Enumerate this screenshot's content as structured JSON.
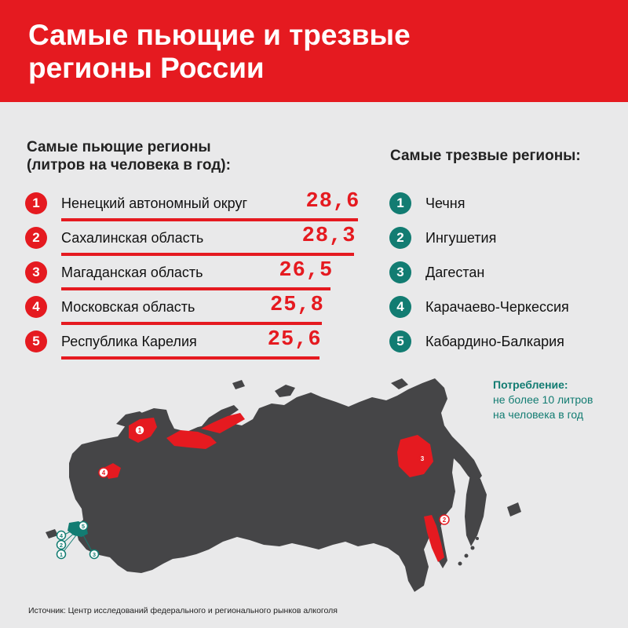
{
  "header": {
    "title_line1": "Самые пьющие и трезвые",
    "title_line2": "регионы России"
  },
  "drinking": {
    "heading_line1": "Самые пьющие регионы",
    "heading_line2": "(литров на человека в год):",
    "color": "#e51a20"
  },
  "sober": {
    "heading": "Самые трезвые регионы:",
    "color": "#127c72"
  },
  "chart_data": {
    "type": "bar",
    "categories": [
      "Ненецкий автономный округ",
      "Сахалинская область",
      "Магаданская область",
      "Московская область",
      "Республика Карелия"
    ],
    "ranks": [
      "1",
      "2",
      "3",
      "4",
      "5"
    ],
    "values": [
      28.6,
      28.3,
      26.5,
      25.8,
      25.6
    ],
    "value_labels": [
      "28,6",
      "28,3",
      "26,5",
      "25,8",
      "25,6"
    ],
    "sober_regions": [
      "Чечня",
      "Ингушетия",
      "Дагестан",
      "Карачаево-Черкессия",
      "Кабардино-Балкария"
    ],
    "sober_ranks": [
      "1",
      "2",
      "3",
      "4",
      "5"
    ]
  },
  "note": {
    "title": "Потребление:",
    "line1": "не более 10 литров",
    "line2": "на человека в год"
  },
  "map": {
    "country_color": "#454547",
    "highlight_color": "#e51a20",
    "sober_color": "#127c72",
    "red_markers": [
      "1",
      "2",
      "3",
      "4"
    ],
    "teal_markers": [
      "1",
      "2",
      "3",
      "4",
      "5"
    ]
  },
  "source": "Источник: Центр исследований федерального и регионального рынков алкоголя"
}
